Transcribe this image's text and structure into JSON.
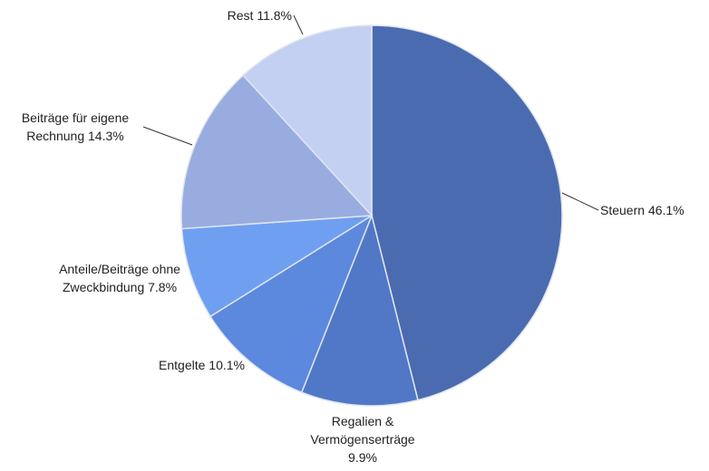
{
  "chart_data": {
    "type": "pie",
    "categories": [
      "Steuern",
      "Regalien & Vermögenserträge",
      "Entgelte",
      "Anteile/Beiträge ohne Zweckbindung",
      "Beiträge für eigene Rechnung",
      "Rest"
    ],
    "values": [
      46.1,
      9.9,
      10.1,
      7.8,
      14.3,
      11.8
    ],
    "value_labels": [
      "46.1%",
      "9.9%",
      "10.1%",
      "7.8%",
      "14.3%",
      "11.8%"
    ],
    "colors": [
      "#4a6bb0",
      "#5078c6",
      "#5c88de",
      "#6f9ff0",
      "#98acdf",
      "#c4d0f1"
    ]
  }
}
